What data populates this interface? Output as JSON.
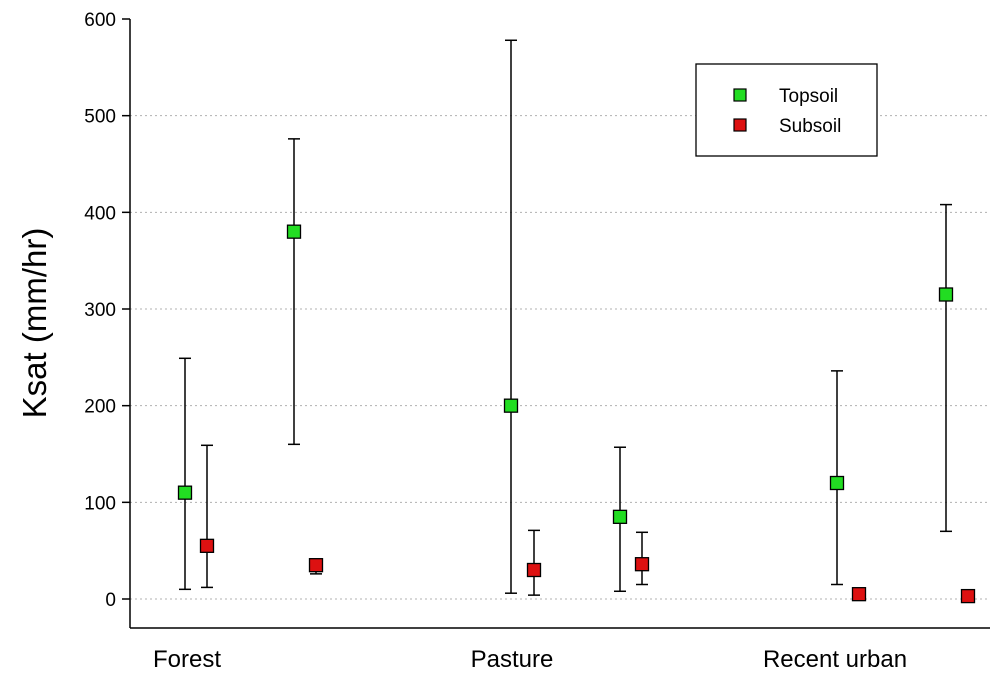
{
  "chart_data": {
    "type": "scatter",
    "title": "",
    "xlabel": "",
    "ylabel": "Ksat (mm/hr)",
    "ylim": [
      -30,
      600
    ],
    "yticks": [
      0,
      100,
      200,
      300,
      400,
      500,
      600
    ],
    "grid": "horizontal-dotted",
    "legend_position": "top-right",
    "categories": [
      "Forest",
      "Pasture",
      "Recent urban"
    ],
    "series": [
      {
        "name": "Topsoil",
        "color": "#22dd22",
        "points": [
          {
            "category": "Forest",
            "slot": 0,
            "y": 110,
            "low": 10,
            "high": 249
          },
          {
            "category": "Forest",
            "slot": 1,
            "y": 380,
            "low": 160,
            "high": 476
          },
          {
            "category": "Pasture",
            "slot": 0,
            "y": 200,
            "low": 6,
            "high": 578
          },
          {
            "category": "Pasture",
            "slot": 1,
            "y": 85,
            "low": 8,
            "high": 157
          },
          {
            "category": "Recent urban",
            "slot": 0,
            "y": 120,
            "low": 15,
            "high": 236
          },
          {
            "category": "Recent urban",
            "slot": 1,
            "y": 315,
            "low": 70,
            "high": 408
          }
        ]
      },
      {
        "name": "Subsoil",
        "color": "#dd1111",
        "points": [
          {
            "category": "Forest",
            "slot": 0,
            "y": 55,
            "low": 12,
            "high": 159
          },
          {
            "category": "Forest",
            "slot": 1,
            "y": 35,
            "low": 26,
            "high": 38
          },
          {
            "category": "Pasture",
            "slot": 0,
            "y": 30,
            "low": 4,
            "high": 71
          },
          {
            "category": "Pasture",
            "slot": 1,
            "y": 36,
            "low": 15,
            "high": 69
          },
          {
            "category": "Recent urban",
            "slot": 0,
            "y": 5,
            "low": null,
            "high": null
          },
          {
            "category": "Recent urban",
            "slot": 1,
            "y": 3,
            "low": null,
            "high": null
          }
        ]
      }
    ]
  }
}
